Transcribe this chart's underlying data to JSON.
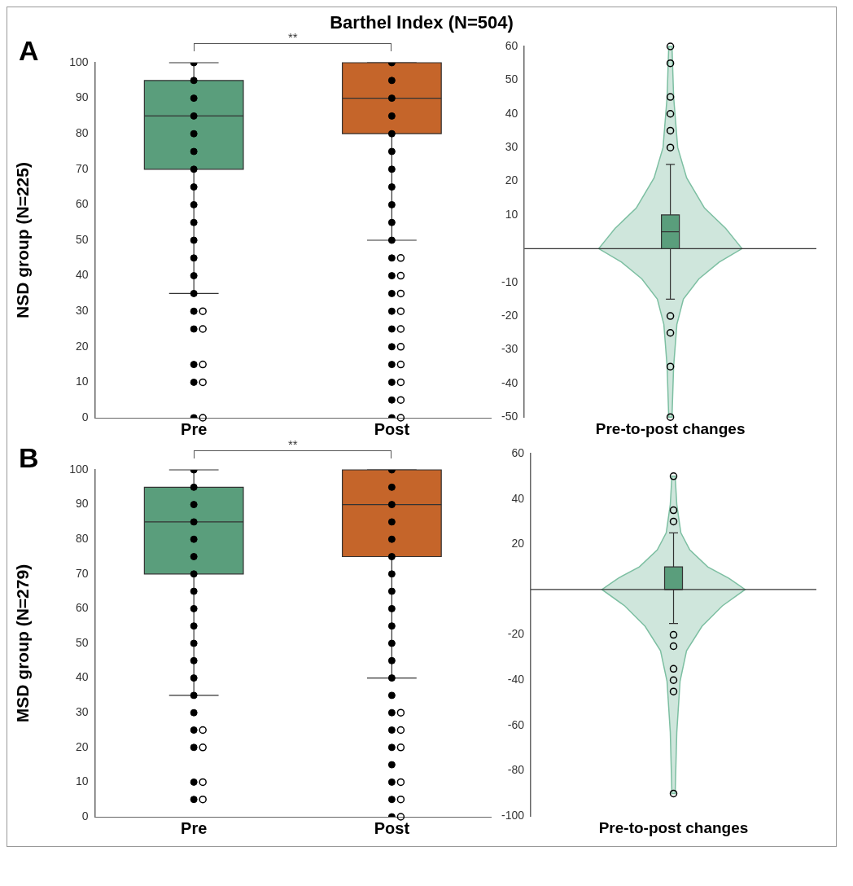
{
  "chart_data": [
    {
      "type": "box",
      "title": "Barthel Index (N=504)",
      "ylabel": "NSD group (N=225)",
      "annotations": [
        "A",
        "**"
      ],
      "categories": [
        "Pre",
        "Post"
      ],
      "colors": [
        "#5a9e7c",
        "#c5652a"
      ],
      "boxes": [
        {
          "low": 35,
          "q1": 70,
          "median": 85,
          "q3": 95,
          "high": 100,
          "outliers": [
            30,
            25,
            15,
            10,
            0
          ]
        },
        {
          "low": 50,
          "q1": 80,
          "median": 90,
          "q3": 100,
          "high": 100,
          "outliers": [
            45,
            40,
            35,
            30,
            25,
            20,
            15,
            10,
            5,
            0
          ]
        }
      ],
      "series": [
        {
          "type": "scatter",
          "color": "#000000",
          "x": [
            "Pre",
            "Pre",
            "Pre",
            "Pre",
            "Pre",
            "Pre",
            "Pre",
            "Pre",
            "Pre",
            "Pre",
            "Pre",
            "Pre",
            "Pre",
            "Pre",
            "Pre",
            "Pre",
            "Pre",
            "Pre",
            "Pre",
            "Post",
            "Post",
            "Post",
            "Post",
            "Post",
            "Post",
            "Post",
            "Post",
            "Post",
            "Post",
            "Post",
            "Post",
            "Post",
            "Post",
            "Post",
            "Post",
            "Post",
            "Post",
            "Post",
            "Post",
            "Post"
          ],
          "values": [
            0,
            10,
            15,
            25,
            30,
            35,
            40,
            45,
            50,
            55,
            60,
            65,
            70,
            75,
            80,
            85,
            90,
            95,
            100,
            0,
            5,
            10,
            15,
            20,
            25,
            30,
            35,
            40,
            45,
            50,
            55,
            60,
            65,
            70,
            75,
            80,
            85,
            90,
            95,
            100
          ]
        }
      ],
      "marker": "circle",
      "ylim": [
        0,
        100
      ],
      "yticks": [
        0,
        10,
        20,
        30,
        40,
        50,
        60,
        70,
        80,
        90,
        100
      ],
      "grid": false,
      "legend": false
    },
    {
      "type": "box",
      "xlabel": "Pre-to-post changes",
      "categories": [
        null
      ],
      "colors": [
        "#5a9e7c"
      ],
      "boxes": [
        {
          "low": -15,
          "q1": 0,
          "median": 5,
          "q3": 10,
          "high": 25,
          "outliers": [
            60,
            55,
            45,
            40,
            35,
            30,
            -20,
            -25,
            -35,
            -50
          ]
        }
      ],
      "ref_lines": [
        {
          "axis": "y",
          "value": 0,
          "color": "#333333"
        }
      ],
      "ylim": [
        -50,
        60
      ],
      "yticks": [
        -50,
        -40,
        -30,
        -20,
        -10,
        10,
        20,
        30,
        40,
        50,
        60
      ],
      "grid": false,
      "legend": false
    },
    {
      "type": "box",
      "ylabel": "MSD group (N=279)",
      "annotations": [
        "B",
        "**"
      ],
      "categories": [
        "Pre",
        "Post"
      ],
      "colors": [
        "#5a9e7c",
        "#c5652a"
      ],
      "boxes": [
        {
          "low": 35,
          "q1": 70,
          "median": 85,
          "q3": 95,
          "high": 100,
          "outliers": [
            25,
            20,
            10,
            5
          ]
        },
        {
          "low": 40,
          "q1": 75,
          "median": 90,
          "q3": 100,
          "high": 100,
          "outliers": [
            30,
            25,
            20,
            10,
            5,
            0
          ]
        }
      ],
      "series": [
        {
          "type": "scatter",
          "color": "#000000",
          "x": [
            "Pre",
            "Pre",
            "Pre",
            "Pre",
            "Pre",
            "Pre",
            "Pre",
            "Pre",
            "Pre",
            "Pre",
            "Pre",
            "Pre",
            "Pre",
            "Pre",
            "Pre",
            "Pre",
            "Pre",
            "Pre",
            "Pre",
            "Post",
            "Post",
            "Post",
            "Post",
            "Post",
            "Post",
            "Post",
            "Post",
            "Post",
            "Post",
            "Post",
            "Post",
            "Post",
            "Post",
            "Post",
            "Post",
            "Post",
            "Post",
            "Post",
            "Post",
            "Post"
          ],
          "values": [
            5,
            10,
            20,
            25,
            30,
            35,
            40,
            45,
            50,
            55,
            60,
            65,
            70,
            75,
            80,
            85,
            90,
            95,
            100,
            0,
            5,
            10,
            15,
            20,
            25,
            30,
            35,
            40,
            45,
            50,
            55,
            60,
            65,
            70,
            75,
            80,
            85,
            90,
            95,
            100
          ]
        }
      ],
      "marker": "circle",
      "ylim": [
        0,
        100
      ],
      "yticks": [
        0,
        10,
        20,
        30,
        40,
        50,
        60,
        70,
        80,
        90,
        100
      ],
      "grid": false,
      "legend": false
    },
    {
      "type": "box",
      "xlabel": "Pre-to-post changes",
      "categories": [
        null
      ],
      "colors": [
        "#5a9e7c"
      ],
      "boxes": [
        {
          "low": -15,
          "q1": 0,
          "median": 0,
          "q3": 10,
          "high": 25,
          "outliers": [
            50,
            35,
            30,
            -20,
            -25,
            -35,
            -40,
            -45,
            -90
          ]
        }
      ],
      "ref_lines": [
        {
          "axis": "y",
          "value": 0,
          "color": "#333333"
        }
      ],
      "ylim": [
        -100,
        60
      ],
      "yticks": [
        -100,
        -80,
        -60,
        -40,
        -20,
        20,
        40,
        60
      ],
      "grid": false,
      "legend": false
    }
  ]
}
